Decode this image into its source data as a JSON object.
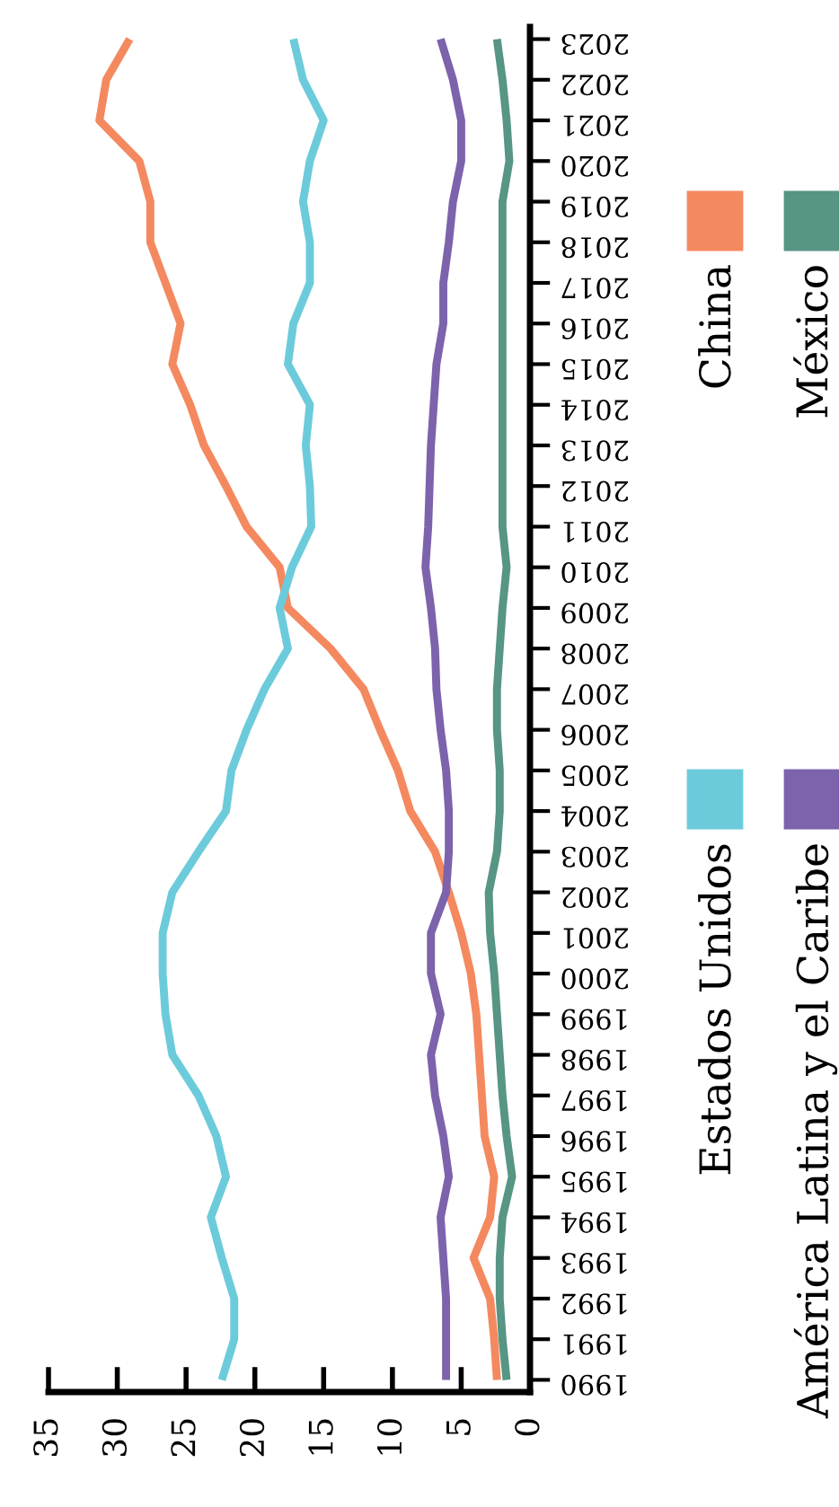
{
  "chart_data": {
    "type": "line",
    "orientation": "horizontal",
    "categories": [
      "2023",
      "2022",
      "2021",
      "2020",
      "2019",
      "2018",
      "2017",
      "2016",
      "2015",
      "2014",
      "2013",
      "2012",
      "2011",
      "2010",
      "2009",
      "2008",
      "2007",
      "2006",
      "2005",
      "2004",
      "2003",
      "2002",
      "2001",
      "2000",
      "1999",
      "1998",
      "1997",
      "1996",
      "1995",
      "1994",
      "1993",
      "1992",
      "1991",
      "1990"
    ],
    "xlim": [
      35,
      0
    ],
    "xticks": [
      35,
      30,
      25,
      20,
      15,
      10,
      5,
      0
    ],
    "legend": "right",
    "grid": false,
    "series": [
      {
        "name": "China",
        "color": "#f4895f",
        "values": [
          29.1,
          30.8,
          31.3,
          28.4,
          27.6,
          27.6,
          26.5,
          25.4,
          26.0,
          24.7,
          23.7,
          22.1,
          20.6,
          18.2,
          17.6,
          14.5,
          12.1,
          10.9,
          9.6,
          8.7,
          6.9,
          5.9,
          5.0,
          4.3,
          3.9,
          3.7,
          3.5,
          3.3,
          2.6,
          2.9,
          4.1,
          2.9,
          2.6,
          2.4
        ]
      },
      {
        "name": "Estados Unidos",
        "color": "#6ccbdb",
        "values": [
          17.2,
          16.5,
          15.0,
          16.0,
          16.5,
          16.0,
          16.0,
          17.2,
          17.6,
          16.0,
          16.3,
          16.0,
          15.9,
          17.3,
          18.2,
          17.6,
          19.3,
          20.6,
          21.7,
          22.1,
          24.1,
          26.0,
          26.7,
          26.7,
          26.5,
          26.0,
          24.1,
          22.8,
          22.1,
          23.2,
          22.4,
          21.5,
          21.5,
          22.4
        ]
      },
      {
        "name": "México",
        "color": "#579584",
        "values": [
          2.4,
          2.0,
          1.7,
          1.5,
          2.0,
          2.0,
          2.0,
          2.0,
          2.0,
          2.0,
          2.0,
          2.0,
          2.0,
          1.7,
          2.0,
          2.2,
          2.4,
          2.4,
          2.2,
          2.2,
          2.4,
          3.0,
          2.9,
          2.6,
          2.4,
          2.2,
          2.0,
          1.7,
          1.3,
          2.0,
          2.2,
          2.2,
          2.0,
          1.7
        ]
      },
      {
        "name": "América Latina y el Caribe",
        "color": "#7c63ac",
        "values": [
          6.5,
          5.6,
          5.0,
          5.0,
          5.6,
          5.9,
          6.3,
          6.3,
          6.8,
          7.0,
          7.2,
          7.3,
          7.4,
          7.6,
          7.2,
          6.9,
          6.8,
          6.5,
          6.1,
          5.9,
          5.9,
          6.1,
          7.2,
          7.2,
          6.5,
          7.2,
          6.9,
          6.3,
          5.9,
          6.5,
          6.3,
          6.1,
          6.1,
          6.1
        ]
      }
    ]
  }
}
